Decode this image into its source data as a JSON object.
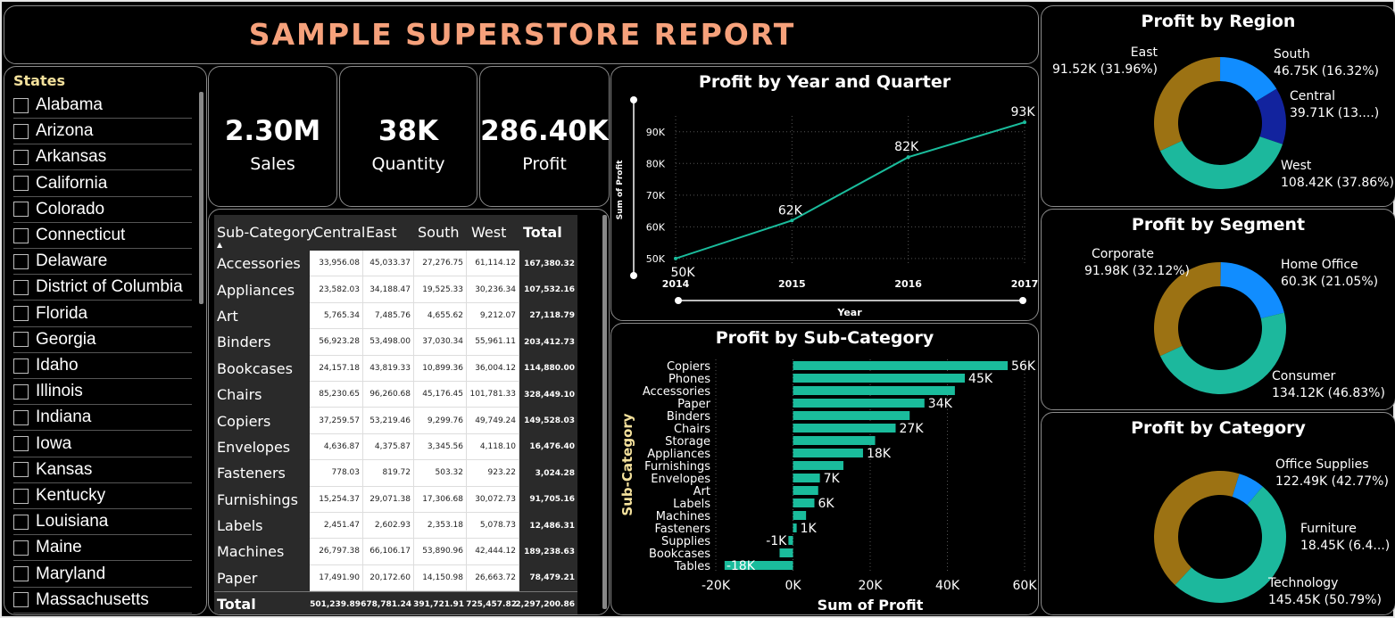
{
  "header": {
    "title": "SAMPLE SUPERSTORE REPORT"
  },
  "states": {
    "header": "States",
    "items": [
      "Alabama",
      "Arizona",
      "Arkansas",
      "California",
      "Colorado",
      "Connecticut",
      "Delaware",
      "District of Columbia",
      "Florida",
      "Georgia",
      "Idaho",
      "Illinois",
      "Indiana",
      "Iowa",
      "Kansas",
      "Kentucky",
      "Louisiana",
      "Maine",
      "Maryland",
      "Massachusetts"
    ]
  },
  "kpis": {
    "sales": {
      "value": "2.30M",
      "label": "Sales"
    },
    "quantity": {
      "value": "38K",
      "label": "Quantity"
    },
    "profit": {
      "value": "286.40K",
      "label": "Profit"
    }
  },
  "matrix": {
    "headers": [
      "Sub-Category",
      "Central",
      "East",
      "South",
      "West",
      "Total"
    ],
    "rows": [
      {
        "name": "Accessories",
        "values": [
          "33,956.08",
          "45,033.37",
          "27,276.75",
          "61,114.12"
        ],
        "total": "167,380.32"
      },
      {
        "name": "Appliances",
        "values": [
          "23,582.03",
          "34,188.47",
          "19,525.33",
          "30,236.34"
        ],
        "total": "107,532.16"
      },
      {
        "name": "Art",
        "values": [
          "5,765.34",
          "7,485.76",
          "4,655.62",
          "9,212.07"
        ],
        "total": "27,118.79"
      },
      {
        "name": "Binders",
        "values": [
          "56,923.28",
          "53,498.00",
          "37,030.34",
          "55,961.11"
        ],
        "total": "203,412.73"
      },
      {
        "name": "Bookcases",
        "values": [
          "24,157.18",
          "43,819.33",
          "10,899.36",
          "36,004.12"
        ],
        "total": "114,880.00"
      },
      {
        "name": "Chairs",
        "values": [
          "85,230.65",
          "96,260.68",
          "45,176.45",
          "101,781.33"
        ],
        "total": "328,449.10"
      },
      {
        "name": "Copiers",
        "values": [
          "37,259.57",
          "53,219.46",
          "9,299.76",
          "49,749.24"
        ],
        "total": "149,528.03"
      },
      {
        "name": "Envelopes",
        "values": [
          "4,636.87",
          "4,375.87",
          "3,345.56",
          "4,118.10"
        ],
        "total": "16,476.40"
      },
      {
        "name": "Fasteners",
        "values": [
          "778.03",
          "819.72",
          "503.32",
          "923.22"
        ],
        "total": "3,024.28"
      },
      {
        "name": "Furnishings",
        "values": [
          "15,254.37",
          "29,071.38",
          "17,306.68",
          "30,072.73"
        ],
        "total": "91,705.16"
      },
      {
        "name": "Labels",
        "values": [
          "2,451.47",
          "2,602.93",
          "2,353.18",
          "5,078.73"
        ],
        "total": "12,486.31"
      },
      {
        "name": "Machines",
        "values": [
          "26,797.38",
          "66,106.17",
          "53,890.96",
          "42,444.12"
        ],
        "total": "189,238.63"
      },
      {
        "name": "Paper",
        "values": [
          "17,491.90",
          "20,172.60",
          "14,150.98",
          "26,663.72"
        ],
        "total": "78,479.21"
      }
    ],
    "totals": {
      "label": "Total",
      "values": [
        "501,239.89",
        "678,781.24",
        "391,721.91",
        "725,457.82"
      ],
      "total": "2,297,200.86"
    }
  },
  "chart_data": [
    {
      "type": "line",
      "title": "Profit by Year and Quarter",
      "xlabel": "Year",
      "ylabel": "Sum of Profit",
      "x": [
        "2014",
        "2015",
        "2016",
        "2017"
      ],
      "series": [
        {
          "values": [
            50000,
            62000,
            82000,
            93000
          ]
        }
      ],
      "data_labels": [
        "50K",
        "62K",
        "82K",
        "93K"
      ],
      "y_ticks": [
        "50K",
        "60K",
        "70K",
        "80K",
        "90K"
      ],
      "ylim": [
        48000,
        95000
      ],
      "color": "#1abc9c"
    },
    {
      "type": "bar",
      "orientation": "horizontal",
      "title": "Profit by Sub-Category",
      "xlabel": "Sum of Profit",
      "ylabel": "Sub-Category",
      "categories": [
        "Copiers",
        "Phones",
        "Accessories",
        "Paper",
        "Binders",
        "Chairs",
        "Storage",
        "Appliances",
        "Furnishings",
        "Envelopes",
        "Art",
        "Labels",
        "Machines",
        "Fasteners",
        "Supplies",
        "Bookcases",
        "Tables"
      ],
      "values": [
        55618,
        44516,
        41937,
        34054,
        30222,
        26590,
        21279,
        18138,
        13059,
        6964,
        6528,
        5546,
        3385,
        950,
        -1189,
        -3473,
        -17725
      ],
      "data_labels": [
        "56K",
        "45K",
        "",
        "34K",
        "",
        "27K",
        "",
        "18K",
        "",
        "7K",
        "",
        "6K",
        "",
        "1K",
        "-1K",
        "",
        "-18K"
      ],
      "x_ticks": [
        "-20K",
        "0K",
        "20K",
        "40K",
        "60K"
      ],
      "xlim": [
        -20000,
        60000
      ],
      "color": "#1abc9c"
    },
    {
      "type": "pie",
      "title": "Profit by Region",
      "slices": [
        {
          "name": "East",
          "value": 91520,
          "label": "91.52K (31.96%)",
          "color": "#9c7213"
        },
        {
          "name": "South",
          "value": 46750,
          "label": "46.75K (16.32%)",
          "color": "#118dff"
        },
        {
          "name": "Central",
          "value": 39710,
          "label": "39.71K (13....)",
          "color": "#12239e"
        },
        {
          "name": "West",
          "value": 108420,
          "label": "108.42K (37.86%)",
          "color": "#1cb89d"
        }
      ]
    },
    {
      "type": "pie",
      "title": "Profit by Segment",
      "slices": [
        {
          "name": "Corporate",
          "value": 91980,
          "label": "91.98K (32.12%)",
          "color": "#9c7213"
        },
        {
          "name": "Home Office",
          "value": 60300,
          "label": "60.3K (21.05%)",
          "color": "#118dff"
        },
        {
          "name": "Consumer",
          "value": 134120,
          "label": "134.12K (46.83%)",
          "color": "#1cb89d"
        }
      ]
    },
    {
      "type": "pie",
      "title": "Profit by Category",
      "slices": [
        {
          "name": "Office Supplies",
          "value": 122490,
          "label": "122.49K (42.77%)",
          "color": "#9c7213"
        },
        {
          "name": "Furniture",
          "value": 18450,
          "label": "18.45K (6.4...)",
          "color": "#118dff"
        },
        {
          "name": "Technology",
          "value": 145450,
          "label": "145.45K (50.79%)",
          "color": "#1cb89d"
        }
      ]
    }
  ]
}
